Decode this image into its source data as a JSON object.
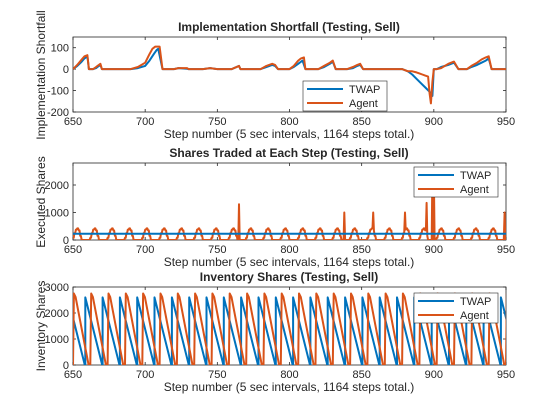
{
  "chart_data": [
    {
      "type": "line",
      "title": "Implementation Shortfall (Testing, Sell)",
      "xlabel": "Step number (5 sec intervals, 1164 steps total.)",
      "ylabel": "Implementation Shortfall",
      "xlim": [
        650,
        950
      ],
      "ylim": [
        -200,
        150
      ],
      "xticks": [
        650,
        700,
        750,
        800,
        850,
        900,
        950
      ],
      "yticks": [
        -200,
        -100,
        0,
        100
      ],
      "grid": false,
      "legend": "bottom-center",
      "series": [
        {
          "name": "TWAP",
          "color": "#0072BD",
          "x": [
            650,
            653,
            656,
            658,
            660,
            661,
            664,
            666,
            667,
            669,
            670,
            680,
            690,
            695,
            700,
            703,
            706,
            708,
            709,
            712,
            714,
            720,
            723,
            729,
            730,
            740,
            745,
            750,
            755,
            760,
            765,
            766,
            770,
            780,
            784,
            788,
            790,
            792,
            800,
            803,
            806,
            809,
            811,
            815,
            820,
            824,
            828,
            830,
            832,
            840,
            844,
            847,
            849,
            851,
            854,
            858,
            860,
            862,
            866,
            870,
            878,
            882,
            885,
            888,
            891,
            894,
            897,
            899,
            900,
            902,
            905,
            910,
            914,
            917,
            920,
            923,
            926,
            930,
            933,
            936,
            938,
            940,
            944,
            947,
            950
          ],
          "y": [
            0,
            15,
            35,
            50,
            60,
            0,
            0,
            5,
            10,
            20,
            0,
            0,
            0,
            5,
            15,
            40,
            70,
            90,
            95,
            0,
            0,
            0,
            5,
            2,
            0,
            0,
            5,
            0,
            0,
            0,
            15,
            0,
            0,
            0,
            10,
            20,
            15,
            0,
            0,
            10,
            25,
            40,
            0,
            0,
            0,
            10,
            25,
            35,
            0,
            0,
            5,
            15,
            20,
            0,
            0,
            0,
            0,
            0,
            0,
            0,
            0,
            -10,
            -25,
            -45,
            -65,
            -85,
            -105,
            -125,
            0,
            0,
            10,
            20,
            30,
            0,
            0,
            0,
            10,
            20,
            30,
            40,
            50,
            0,
            0,
            0,
            0
          ]
        },
        {
          "name": "Agent",
          "color": "#D95319",
          "x": [
            650,
            653,
            656,
            658,
            660,
            661,
            664,
            666,
            667,
            669,
            670,
            680,
            690,
            695,
            700,
            703,
            705,
            707,
            709,
            710,
            712,
            714,
            720,
            723,
            729,
            730,
            740,
            745,
            750,
            755,
            760,
            765,
            766,
            770,
            780,
            784,
            788,
            790,
            792,
            800,
            803,
            806,
            808,
            810,
            811,
            815,
            820,
            824,
            828,
            830,
            832,
            840,
            844,
            847,
            849,
            851,
            854,
            858,
            860,
            862,
            866,
            870,
            878,
            880,
            882,
            885,
            888,
            890,
            892,
            894,
            896,
            897,
            898,
            899,
            900,
            902,
            905,
            910,
            914,
            917,
            920,
            923,
            926,
            930,
            933,
            936,
            938,
            940,
            944,
            947,
            950
          ],
          "y": [
            0,
            20,
            45,
            60,
            65,
            0,
            0,
            10,
            15,
            25,
            0,
            0,
            0,
            10,
            30,
            70,
            95,
            105,
            105,
            105,
            0,
            0,
            0,
            5,
            5,
            0,
            0,
            5,
            0,
            0,
            0,
            15,
            0,
            0,
            0,
            15,
            25,
            20,
            0,
            0,
            15,
            40,
            50,
            55,
            0,
            0,
            0,
            15,
            30,
            40,
            0,
            0,
            10,
            20,
            25,
            0,
            0,
            0,
            0,
            0,
            0,
            0,
            0,
            -5,
            -10,
            -10,
            -15,
            -20,
            -25,
            -30,
            -35,
            -110,
            -160,
            -60,
            0,
            0,
            5,
            25,
            35,
            0,
            0,
            0,
            15,
            30,
            45,
            55,
            60,
            0,
            0,
            0,
            0
          ]
        }
      ]
    },
    {
      "type": "line",
      "title": "Shares Traded at Each Step (Testing, Sell)",
      "xlabel": "Step number (5 sec intervals, 1164 steps total.)",
      "ylabel": "Executed Shares",
      "xlim": [
        650,
        950
      ],
      "ylim": [
        0,
        2800
      ],
      "xticks": [
        650,
        700,
        750,
        800,
        850,
        900,
        950
      ],
      "yticks": [
        0,
        1000,
        2000
      ],
      "grid": false,
      "legend": "top-right",
      "series": [
        {
          "name": "TWAP",
          "color": "#0072BD",
          "x": [
            650,
            950
          ],
          "y": [
            230,
            230
          ]
        },
        {
          "name": "Agent",
          "color": "#D95319",
          "spikes": [
            [
              765,
              1300
            ],
            [
              838,
              1000
            ],
            [
              858,
              1000
            ],
            [
              880,
              1000
            ],
            [
              895,
              1350
            ],
            [
              899,
              2500
            ],
            [
              900,
              2500
            ],
            [
              949,
              1000
            ]
          ]
        }
      ]
    },
    {
      "type": "line",
      "title": "Inventory Shares (Testing, Sell)",
      "xlabel": "Step number (5 sec intervals, 1164 steps total.)",
      "ylabel": "Inventory Shares",
      "xlim": [
        650,
        950
      ],
      "ylim": [
        0,
        3000
      ],
      "xticks": [
        650,
        700,
        750,
        800,
        850,
        900,
        950
      ],
      "yticks": [
        0,
        1000,
        2000,
        3000
      ],
      "grid": false,
      "legend": "top-right",
      "series": [
        {
          "name": "TWAP",
          "color": "#0072BD",
          "period": 12,
          "peak": 2600
        },
        {
          "name": "Agent",
          "color": "#D95319",
          "period": 12,
          "peak": 2750
        }
      ]
    }
  ]
}
